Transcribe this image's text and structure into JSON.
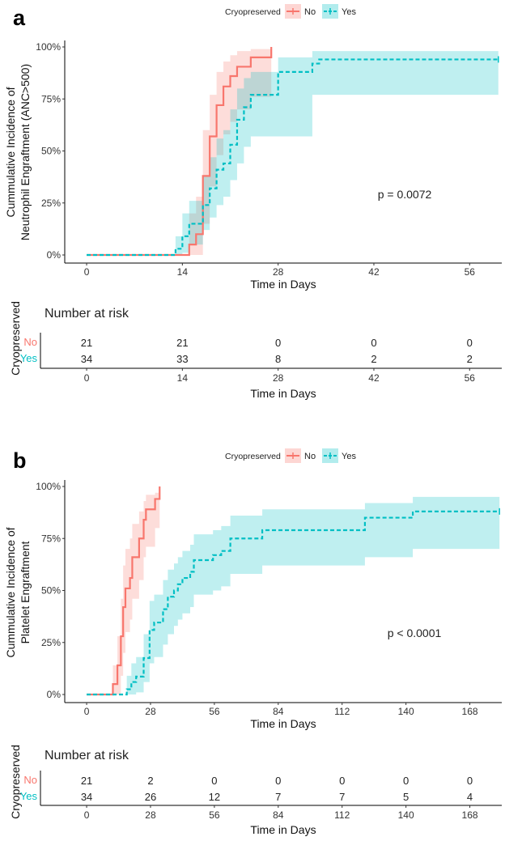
{
  "colors": {
    "no": "#F8766D",
    "yes": "#00BFC4",
    "no_band": "#F8766D",
    "yes_band": "#00BFC4"
  },
  "chart_data": [
    {
      "type": "line",
      "panel_label": "a",
      "title": "",
      "legend": {
        "title": "Cryopreserved",
        "entries": [
          "No",
          "Yes"
        ],
        "placement": "top"
      },
      "xlabel": "Time in Days",
      "ylabel_lines": [
        "Cummulative Incidence of",
        "Neutrophil Engraftment (ANC>500)"
      ],
      "xlim": [
        -3.2,
        60.7
      ],
      "ylim": [
        0,
        100
      ],
      "xticks": [
        0,
        14,
        28,
        42,
        56
      ],
      "yticks": [
        0,
        25,
        50,
        75,
        100
      ],
      "ytick_labels": [
        "0%",
        "25%",
        "50%",
        "75%",
        "100%"
      ],
      "annotation": "p = 0.0072",
      "series": [
        {
          "name": "No",
          "style": "solid",
          "end": 27,
          "times": [
            0,
            15,
            16,
            17,
            18,
            19,
            20,
            21,
            22,
            24,
            27
          ],
          "estimate": [
            0,
            5,
            10,
            38,
            57,
            72,
            81,
            86,
            90.5,
            95,
            100
          ],
          "lower": [
            0,
            0,
            0,
            15,
            33,
            48,
            58,
            64,
            70,
            76,
            100
          ],
          "upper": [
            0,
            20,
            28,
            60,
            77,
            88,
            93,
            96,
            98,
            99,
            100
          ]
        },
        {
          "name": "Yes",
          "style": "dashed",
          "end": 60.2,
          "censor_at_end": true,
          "times": [
            0,
            13,
            14,
            15,
            17,
            18,
            19,
            20,
            21,
            22,
            23,
            24,
            28,
            33,
            34
          ],
          "estimate": [
            0,
            3,
            9,
            15,
            24,
            32,
            41,
            44,
            53,
            65,
            71,
            77,
            88,
            92,
            94
          ],
          "lower": [
            0,
            0,
            1,
            5,
            12,
            18,
            24,
            28,
            36,
            44,
            52,
            57,
            57,
            77,
            77
          ],
          "upper": [
            0,
            9,
            20,
            26,
            38,
            47,
            56,
            60,
            70,
            80,
            85,
            88,
            95,
            98,
            98
          ]
        }
      ],
      "risk_table": {
        "title": "Number at risk",
        "ylabel": "Cryopreserved",
        "xlabel": "Time in Days",
        "times": [
          0,
          14,
          28,
          42,
          56
        ],
        "rows": [
          {
            "label": "No",
            "values": [
              "21",
              "21",
              "0",
              "0",
              "0"
            ]
          },
          {
            "label": "Yes",
            "values": [
              "34",
              "33",
              "8",
              "2",
              "2"
            ]
          }
        ]
      }
    },
    {
      "type": "line",
      "panel_label": "b",
      "title": "",
      "legend": {
        "title": "Cryopreserved",
        "entries": [
          "No",
          "Yes"
        ],
        "placement": "top"
      },
      "xlabel": "Time in Days",
      "ylabel_lines": [
        "Cummulative Incidence of",
        "Platelet Engraftment"
      ],
      "xlim": [
        -9.6,
        182
      ],
      "ylim": [
        0,
        100
      ],
      "xticks": [
        0,
        28,
        56,
        84,
        112,
        140,
        168
      ],
      "yticks": [
        0,
        25,
        50,
        75,
        100
      ],
      "ytick_labels": [
        "0%",
        "25%",
        "50%",
        "75%",
        "100%"
      ],
      "annotation": "p < 0.0001",
      "series": [
        {
          "name": "No",
          "style": "solid",
          "end": 32,
          "times": [
            0,
            11.5,
            13.5,
            15,
            16,
            17,
            19,
            20,
            23,
            25,
            26,
            30,
            32
          ],
          "estimate": [
            0,
            5,
            14,
            28,
            42,
            51,
            56,
            66,
            75,
            84,
            89,
            94,
            100
          ],
          "lower": [
            0,
            0,
            0,
            9,
            20,
            30,
            36,
            46,
            55,
            66,
            71,
            80,
            100
          ],
          "upper": [
            0,
            14,
            28,
            46,
            62,
            70,
            75,
            82,
            88,
            93,
            96,
            97,
            100
          ]
        },
        {
          "name": "Yes",
          "style": "dashed",
          "end": 181,
          "censor_at_end": true,
          "times": [
            0,
            17.6,
            19.6,
            21.7,
            25,
            27.6,
            29.6,
            33.5,
            35.6,
            38.3,
            40,
            42,
            45.4,
            47,
            55.4,
            59,
            63,
            77,
            122,
            143
          ],
          "estimate": [
            0,
            2.5,
            6,
            8.6,
            17.5,
            31,
            34.6,
            41,
            47,
            50,
            53,
            56,
            59,
            64.6,
            67,
            69,
            75,
            79,
            85,
            88
          ],
          "lower": [
            0,
            0,
            0,
            1,
            6,
            15,
            18,
            24,
            29,
            33,
            36,
            39,
            42,
            48,
            50,
            52,
            58,
            62,
            66,
            70
          ],
          "upper": [
            0,
            9,
            15,
            18,
            29,
            45,
            48,
            55,
            60,
            63,
            66,
            69,
            72,
            77,
            79,
            81,
            86,
            89,
            92,
            95
          ]
        }
      ],
      "risk_table": {
        "title": "Number at risk",
        "ylabel": "Cryopreserved",
        "xlabel": "Time in Days",
        "times": [
          0,
          28,
          56,
          84,
          112,
          140,
          168
        ],
        "rows": [
          {
            "label": "No",
            "values": [
              "21",
              "2",
              "0",
              "0",
              "0",
              "0",
              "0"
            ]
          },
          {
            "label": "Yes",
            "values": [
              "34",
              "26",
              "12",
              "7",
              "7",
              "5",
              "4"
            ]
          }
        ]
      }
    }
  ]
}
